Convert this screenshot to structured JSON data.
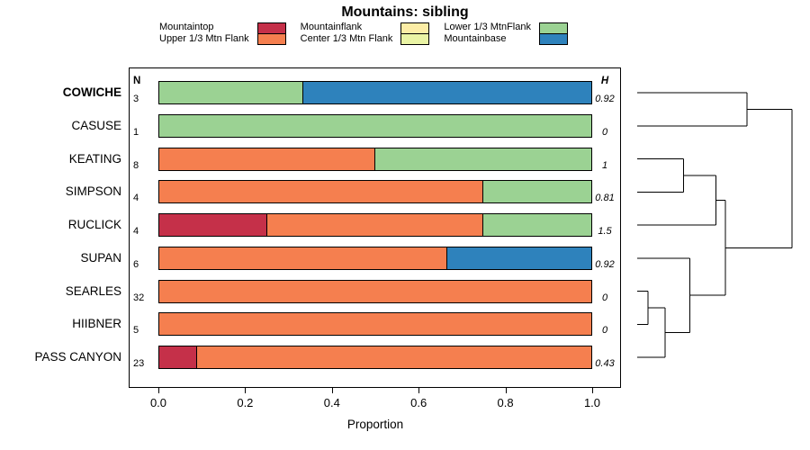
{
  "title": "Mountains: sibling",
  "xlabel": "Proportion",
  "columns": {
    "n_header": "N",
    "h_header": "H"
  },
  "legend": {
    "entries": [
      {
        "label": "Mountaintop",
        "color": "#c53049"
      },
      {
        "label": "Upper 1/3 Mtn Flank",
        "color": "#f57f4f"
      },
      {
        "label": "Mountainflank",
        "color": "#fceda6"
      },
      {
        "label": "Center 1/3 Mtn Flank",
        "color": "#eaf4a5"
      },
      {
        "label": "Lower 1/3 MtnFlank",
        "color": "#9bd293"
      },
      {
        "label": "Mountainbase",
        "color": "#2e82bc"
      }
    ]
  },
  "chart_data": {
    "type": "bar",
    "orientation": "horizontal",
    "stacked": true,
    "title": "Mountains: sibling",
    "xlabel": "Proportion",
    "xlim": [
      0,
      1
    ],
    "xticks": [
      "0.0",
      "0.2",
      "0.4",
      "0.6",
      "0.8",
      "1.0"
    ],
    "categories": [
      "Mountaintop",
      "Upper 1/3 Mtn Flank",
      "Mountainflank",
      "Center 1/3 Mtn Flank",
      "Lower 1/3 MtnFlank",
      "Mountainbase"
    ],
    "palette": {
      "Mountaintop": "#c53049",
      "Upper 1/3 Mtn Flank": "#f57f4f",
      "Mountainflank": "#fceda6",
      "Center 1/3 Mtn Flank": "#eaf4a5",
      "Lower 1/3 MtnFlank": "#9bd293",
      "Mountainbase": "#2e82bc"
    },
    "rows": [
      {
        "label": "COWICHE",
        "emphasis": true,
        "n": "3",
        "h": "0.92",
        "segments": [
          [
            "Lower 1/3 MtnFlank",
            0.333
          ],
          [
            "Mountainbase",
            0.667
          ]
        ]
      },
      {
        "label": "CASUSE",
        "emphasis": false,
        "n": "1",
        "h": "0",
        "segments": [
          [
            "Lower 1/3 MtnFlank",
            1.0
          ]
        ]
      },
      {
        "label": "KEATING",
        "emphasis": false,
        "n": "8",
        "h": "1",
        "segments": [
          [
            "Upper 1/3 Mtn Flank",
            0.5
          ],
          [
            "Lower 1/3 MtnFlank",
            0.5
          ]
        ]
      },
      {
        "label": "SIMPSON",
        "emphasis": false,
        "n": "4",
        "h": "0.81",
        "segments": [
          [
            "Upper 1/3 Mtn Flank",
            0.75
          ],
          [
            "Lower 1/3 MtnFlank",
            0.25
          ]
        ]
      },
      {
        "label": "RUCLICK",
        "emphasis": false,
        "n": "4",
        "h": "1.5",
        "segments": [
          [
            "Mountaintop",
            0.25
          ],
          [
            "Upper 1/3 Mtn Flank",
            0.5
          ],
          [
            "Lower 1/3 MtnFlank",
            0.25
          ]
        ]
      },
      {
        "label": "SUPAN",
        "emphasis": false,
        "n": "6",
        "h": "0.92",
        "segments": [
          [
            "Upper 1/3 Mtn Flank",
            0.667
          ],
          [
            "Mountainbase",
            0.333
          ]
        ]
      },
      {
        "label": "SEARLES",
        "emphasis": false,
        "n": "32",
        "h": "0",
        "segments": [
          [
            "Upper 1/3 Mtn Flank",
            1.0
          ]
        ]
      },
      {
        "label": "HIIBNER",
        "emphasis": false,
        "n": "5",
        "h": "0",
        "segments": [
          [
            "Upper 1/3 Mtn Flank",
            1.0
          ]
        ]
      },
      {
        "label": "PASS CANYON",
        "emphasis": false,
        "n": "23",
        "h": "0.43",
        "segments": [
          [
            "Mountaintop",
            0.087
          ],
          [
            "Upper 1/3 Mtn Flank",
            0.913
          ]
        ]
      }
    ]
  },
  "dendrogram": {
    "leaves": [
      "COWICHE",
      "CASUSE",
      "KEATING",
      "SIMPSON",
      "RUCLICK",
      "SUPAN",
      "SEARLES",
      "HIIBNER",
      "PASS CANYON"
    ],
    "merges": [
      {
        "id": "m1",
        "children": [
          "SEARLES",
          "HIIBNER"
        ],
        "height": 0.07
      },
      {
        "id": "m2",
        "children": [
          "m1",
          "PASS CANYON"
        ],
        "height": 0.18
      },
      {
        "id": "m3",
        "children": [
          "KEATING",
          "SIMPSON"
        ],
        "height": 0.3
      },
      {
        "id": "m4",
        "children": [
          "SUPAN",
          "m2"
        ],
        "height": 0.34
      },
      {
        "id": "m5",
        "children": [
          "m3",
          "RUCLICK"
        ],
        "height": 0.51
      },
      {
        "id": "m6",
        "children": [
          "m5",
          "m4"
        ],
        "height": 0.57
      },
      {
        "id": "m7",
        "children": [
          "COWICHE",
          "CASUSE"
        ],
        "height": 0.71
      },
      {
        "id": "m8",
        "children": [
          "m7",
          "m6"
        ],
        "height": 1.0
      }
    ]
  }
}
